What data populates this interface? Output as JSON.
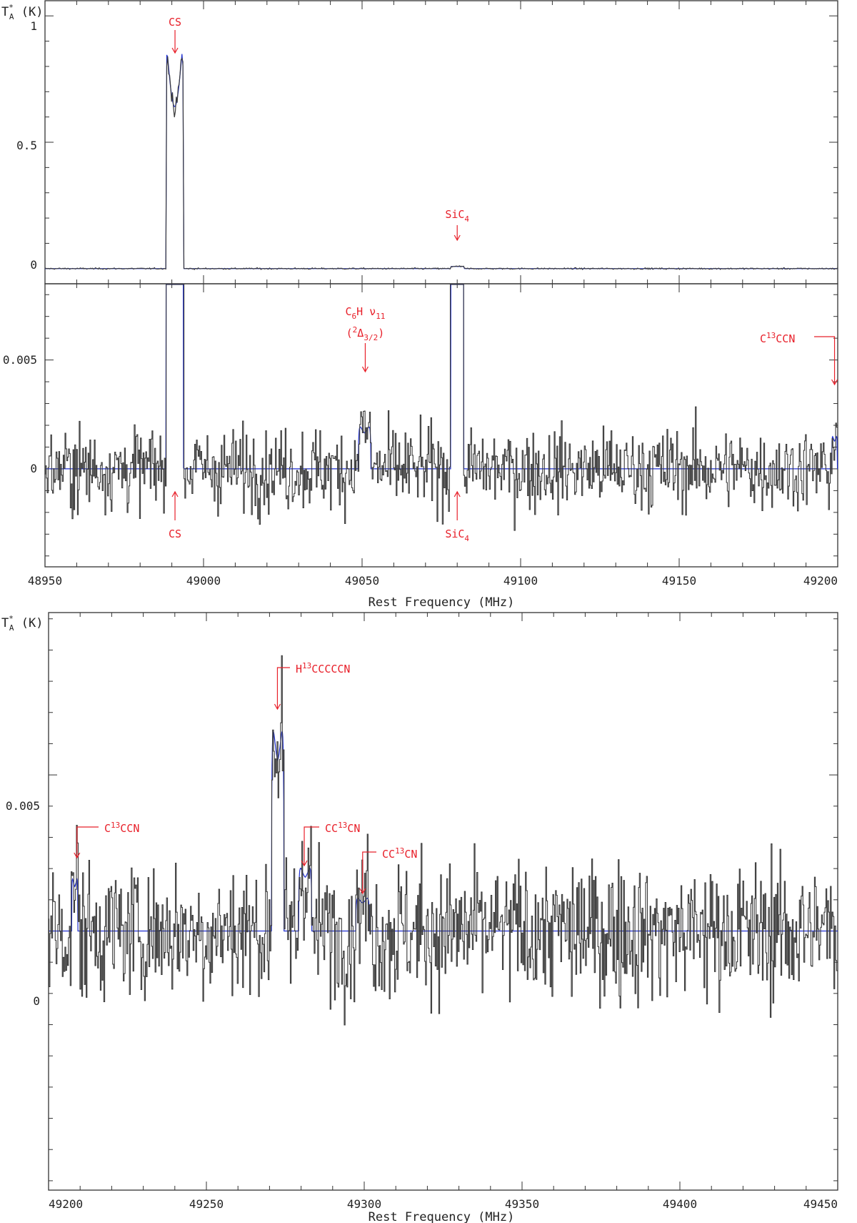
{
  "colors": {
    "observed": "#3a3a3a",
    "model": "#1f2fd0",
    "annotation": "#e8202a",
    "axis": "#333333"
  },
  "chart_data": [
    {
      "type": "line",
      "panel": "top-overview",
      "xlim": [
        48950,
        49200
      ],
      "ylim": [
        -0.06,
        1.06
      ],
      "xlabel": "",
      "ylabel": "T*A (K)",
      "ylabel_main": "T",
      "ylabel_sup": "*",
      "ylabel_sub": "A",
      "ylabel_unit": " (K)",
      "y_ticks": [
        0,
        0.5,
        1
      ],
      "y_tick_labels": [
        "0",
        "0.5",
        "1"
      ],
      "lines": [
        {
          "name": "CS",
          "freq": 48990.9,
          "peak": 0.95,
          "dip": 0.64,
          "halfwidth": 2.8,
          "kind": "double"
        },
        {
          "name": "SiC4",
          "freq": 49080.0,
          "peak": 0.0085,
          "halfwidth": 2.1,
          "kind": "flat"
        }
      ],
      "annotations": [
        {
          "text": "CS",
          "freq": 48991.0,
          "side": "above"
        },
        {
          "text": "SiC",
          "sub": "4",
          "freq": 49080.0,
          "side": "above"
        }
      ]
    },
    {
      "type": "line",
      "panel": "top-zoom",
      "xlim": [
        48950,
        49200
      ],
      "ylim": [
        -0.0045,
        0.0085
      ],
      "xlabel": "Rest Frequency (MHz)",
      "ylabel": "",
      "x_ticks": [
        48950,
        49000,
        49050,
        49100,
        49150,
        49200
      ],
      "x_tick_labels": [
        "48950",
        "49000",
        "49050",
        "49100",
        "49150",
        "49200"
      ],
      "y_ticks": [
        0,
        0.005
      ],
      "y_tick_labels": [
        "0",
        "0.005"
      ],
      "noise_rms": 0.0011,
      "model_lines": [
        {
          "name": "CS",
          "freq": 48990.9,
          "halfwidth": 2.8,
          "peak": 0.95
        },
        {
          "name": "C6H v11 (2Delta3/2)",
          "freq": 49050.8,
          "halfwidth": 2.0,
          "peak": 0.0022
        },
        {
          "name": "SiC4",
          "freq": 49080.0,
          "halfwidth": 2.1,
          "peak": 0.02
        },
        {
          "name": "C13CCN",
          "freq": 49199.0,
          "halfwidth": 0.9,
          "peak": 0.0017
        }
      ],
      "annotations": [
        {
          "text": "C",
          "sub1": "6",
          "text2": "H  ν",
          "sub2": "11",
          "line2": "(",
          "sup3": "2",
          "text3": "Δ",
          "sub3": "3/2",
          "close3": ")",
          "freq": 49051.0,
          "side": "above"
        },
        {
          "text": "C",
          "sup": "13",
          "text2": "CCN",
          "freq": 49199.0,
          "side": "above-left"
        },
        {
          "text": "CS",
          "freq": 48991.0,
          "side": "below"
        },
        {
          "text": "SiC",
          "sub": "4",
          "freq": 49080.0,
          "side": "below"
        }
      ]
    },
    {
      "type": "line",
      "panel": "bottom",
      "xlim": [
        49200,
        49450
      ],
      "ylim": [
        -0.0083,
        0.0102
      ],
      "xlabel": "Rest Frequency (MHz)",
      "ylabel": "T*A (K)",
      "ylabel_main": "T",
      "ylabel_sup": "*",
      "ylabel_sub": "A",
      "ylabel_unit": " (K)",
      "x_ticks": [
        49200,
        49250,
        49300,
        49350,
        49400,
        49450
      ],
      "x_tick_labels": [
        "49200",
        "49250",
        "49300",
        "49350",
        "49400",
        "49450"
      ],
      "y_ticks": [
        0,
        0.005
      ],
      "y_tick_labels": [
        "0",
        "0.005"
      ],
      "noise_rms": 0.0013,
      "model_lines": [
        {
          "name": "C13CCN",
          "freq": 49208.3,
          "halfwidth": 1.0,
          "peak": 0.0019,
          "kind": "double"
        },
        {
          "name": "H13CCCCCN",
          "freq": 49272.6,
          "halfwidth": 2.0,
          "peak": 0.0073,
          "kind": "double"
        },
        {
          "name": "CC13CN",
          "freq": 49281.3,
          "halfwidth": 2.1,
          "peak": 0.0023,
          "kind": "double"
        },
        {
          "name": "CC13CN",
          "freq": 49299.5,
          "halfwidth": 2.2,
          "peak": 0.0012,
          "kind": "double"
        }
      ],
      "annotations": [
        {
          "text": "H",
          "sup": "13",
          "text2": "CCCCCN",
          "freq": 49272.5,
          "side": "above"
        },
        {
          "text": "C",
          "sup": "13",
          "text2": "CCN",
          "freq": 49209.0,
          "side": "above"
        },
        {
          "text": "CC",
          "sup": "13",
          "text2": "CN",
          "freq": 49281.0,
          "side": "above"
        },
        {
          "text": "CC",
          "sup": "13",
          "text2": "CN",
          "freq": 49299.5,
          "side": "above"
        }
      ]
    }
  ]
}
